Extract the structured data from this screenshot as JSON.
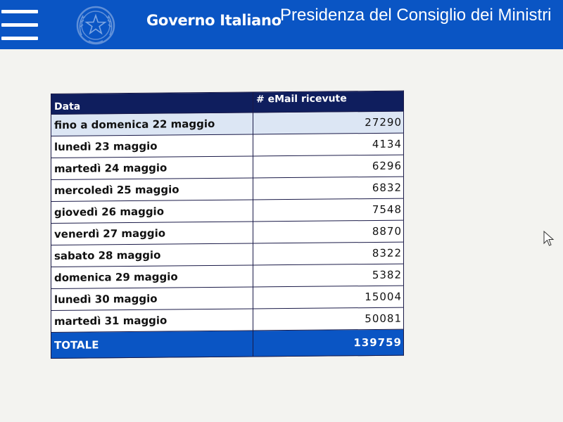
{
  "header": {
    "brand": "Governo Italiano",
    "subbrand": "Presidenza del Consiglio dei Ministri",
    "menu_icon": "hamburger-menu-icon",
    "emblem_icon": "italian-emblem-icon"
  },
  "table": {
    "headers": [
      "Data",
      "# eMail ricevute"
    ],
    "rows": [
      {
        "date": "fino a domenica 22 maggio",
        "count": "27290"
      },
      {
        "date": "lunedì 23 maggio",
        "count": "4134"
      },
      {
        "date": "martedì 24 maggio",
        "count": "6296"
      },
      {
        "date": "mercoledì 25 maggio",
        "count": "6832"
      },
      {
        "date": "giovedì 26 maggio",
        "count": "7548"
      },
      {
        "date": "venerdì 27 maggio",
        "count": "8870"
      },
      {
        "date": "sabato 28 maggio",
        "count": "8322"
      },
      {
        "date": "domenica 29 maggio",
        "count": "5382"
      },
      {
        "date": "lunedì 30 maggio",
        "count": "15004"
      },
      {
        "date": "martedì 31 maggio",
        "count": "50081"
      }
    ],
    "total_label": "TOTALE",
    "total_value": "139759"
  },
  "colors": {
    "header_blue": "#0a55c4",
    "table_header_navy": "#0f1e5e",
    "first_row_highlight": "#dce6f4"
  }
}
